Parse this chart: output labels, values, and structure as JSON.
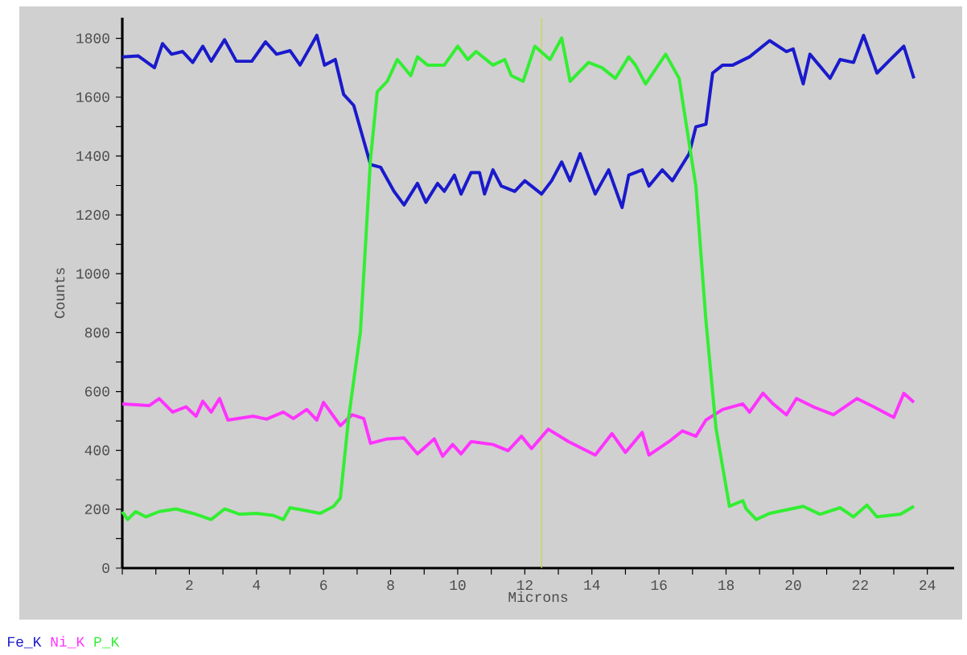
{
  "chart_data": {
    "type": "line",
    "xlabel": "Microns",
    "ylabel": "Counts",
    "xlim": [
      0,
      24.8
    ],
    "ylim": [
      0,
      1870
    ],
    "xticks": [
      {
        "value": 0,
        "label": null
      },
      {
        "value": 1,
        "label": null
      },
      2,
      {
        "value": 3,
        "label": null
      },
      4,
      {
        "value": 5,
        "label": null
      },
      6,
      {
        "value": 7,
        "label": null
      },
      8,
      {
        "value": 9,
        "label": null
      },
      10,
      {
        "value": 11,
        "label": null
      },
      12,
      {
        "value": 13,
        "label": null
      },
      14,
      {
        "value": 15,
        "label": null
      },
      16,
      {
        "value": 17,
        "label": null
      },
      18,
      {
        "value": 19,
        "label": null
      },
      20,
      {
        "value": 21,
        "label": null
      },
      22,
      {
        "value": 23,
        "label": null
      },
      24
    ],
    "yticks": [
      0,
      {
        "value": 100,
        "label": null
      },
      200,
      {
        "value": 300,
        "label": null
      },
      400,
      {
        "value": 500,
        "label": null
      },
      600,
      {
        "value": 700,
        "label": null
      },
      800,
      {
        "value": 900,
        "label": null
      },
      1000,
      {
        "value": 1100,
        "label": null
      },
      1200,
      {
        "value": 1300,
        "label": null
      },
      1400,
      {
        "value": 1500,
        "label": null
      },
      1600,
      {
        "value": 1700,
        "label": null
      },
      1800
    ],
    "legend": "bottom left",
    "ref_lines": [
      {
        "axis": "x",
        "value": 12.5,
        "color": "#c8d84a"
      }
    ],
    "series": [
      {
        "name": "Fe_K",
        "color": "#1a1acc",
        "x": [
          0,
          0.48,
          0.96,
          1.2,
          1.47,
          1.8,
          2.1,
          2.4,
          2.65,
          3.05,
          3.4,
          3.86,
          4.27,
          4.6,
          5.0,
          5.3,
          5.8,
          6.03,
          6.35,
          6.6,
          6.9,
          7.4,
          7.7,
          8.1,
          8.4,
          8.8,
          9.05,
          9.4,
          9.6,
          9.9,
          10.1,
          10.4,
          10.65,
          10.8,
          11.05,
          11.3,
          11.7,
          12.0,
          12.5,
          12.8,
          13.1,
          13.35,
          13.65,
          14.1,
          14.5,
          14.9,
          15.1,
          15.5,
          15.7,
          16.1,
          16.4,
          16.9,
          17.1,
          17.4,
          17.6,
          17.9,
          18.2,
          18.7,
          19.3,
          19.8,
          20.0,
          20.3,
          20.5,
          21.1,
          21.4,
          21.8,
          22.1,
          22.5,
          22.9,
          23.3,
          23.6
        ],
        "values": [
          1737,
          1740,
          1700,
          1782,
          1746,
          1755,
          1718,
          1773,
          1722,
          1795,
          1722,
          1722,
          1788,
          1746,
          1758,
          1709,
          1810,
          1709,
          1728,
          1609,
          1572,
          1371,
          1362,
          1280,
          1234,
          1307,
          1243,
          1307,
          1280,
          1335,
          1271,
          1344,
          1344,
          1271,
          1353,
          1298,
          1280,
          1316,
          1271,
          1316,
          1380,
          1316,
          1408,
          1271,
          1353,
          1225,
          1335,
          1353,
          1298,
          1353,
          1316,
          1408,
          1499,
          1508,
          1682,
          1709,
          1709,
          1737,
          1792,
          1755,
          1764,
          1645,
          1746,
          1664,
          1728,
          1718,
          1810,
          1682,
          1728,
          1773,
          1664
        ]
      },
      {
        "name": "Ni_K",
        "color": "#ff33ff",
        "x": [
          0,
          0.8,
          1.1,
          1.5,
          1.9,
          2.2,
          2.4,
          2.65,
          2.9,
          3.15,
          3.9,
          4.3,
          4.8,
          5.1,
          5.5,
          5.8,
          6.0,
          6.5,
          6.85,
          7.2,
          7.4,
          7.9,
          8.4,
          8.8,
          9.3,
          9.55,
          9.85,
          10.1,
          10.4,
          11.05,
          11.5,
          11.9,
          12.2,
          12.7,
          13.3,
          14.1,
          14.6,
          15.0,
          15.5,
          15.7,
          16.3,
          16.7,
          17.1,
          17.4,
          17.9,
          18.5,
          18.7,
          19.1,
          19.4,
          19.8,
          20.1,
          20.6,
          21.2,
          21.9,
          22.4,
          23.0,
          23.3,
          23.6
        ],
        "values": [
          558,
          552,
          576,
          530,
          548,
          516,
          567,
          530,
          576,
          503,
          516,
          506,
          530,
          508,
          539,
          503,
          563,
          484,
          521,
          508,
          424,
          439,
          442,
          388,
          439,
          380,
          420,
          388,
          430,
          420,
          399,
          448,
          406,
          472,
          430,
          384,
          457,
          393,
          461,
          384,
          430,
          466,
          448,
          503,
          539,
          558,
          530,
          594,
          558,
          521,
          576,
          548,
          521,
          576,
          548,
          512,
          594,
          563
        ]
      },
      {
        "name": "P_K",
        "color": "#33ee33",
        "x": [
          0,
          0.16,
          0.4,
          0.7,
          1.1,
          1.6,
          2.1,
          2.65,
          3.05,
          3.5,
          4.0,
          4.5,
          4.8,
          5.0,
          5.4,
          5.9,
          6.3,
          6.5,
          6.75,
          7.1,
          7.4,
          7.6,
          7.9,
          8.2,
          8.6,
          8.8,
          9.1,
          9.6,
          10.0,
          10.3,
          10.55,
          11.05,
          11.4,
          11.6,
          11.95,
          12.3,
          12.75,
          13.1,
          13.35,
          13.9,
          14.3,
          14.7,
          15.1,
          15.3,
          15.6,
          16.2,
          16.6,
          16.8,
          17.1,
          17.4,
          17.7,
          18.1,
          18.5,
          18.6,
          18.9,
          19.3,
          20.3,
          20.8,
          21.4,
          21.8,
          22.2,
          22.5,
          23.2,
          23.6
        ],
        "values": [
          192,
          165,
          192,
          174,
          192,
          201,
          186,
          165,
          201,
          183,
          186,
          179,
          165,
          205,
          197,
          186,
          210,
          238,
          512,
          804,
          1389,
          1618,
          1654,
          1728,
          1673,
          1737,
          1709,
          1709,
          1773,
          1728,
          1755,
          1709,
          1728,
          1673,
          1654,
          1773,
          1728,
          1801,
          1654,
          1718,
          1700,
          1664,
          1737,
          1709,
          1645,
          1746,
          1664,
          1517,
          1298,
          841,
          475,
          210,
          229,
          201,
          165,
          186,
          210,
          183,
          205,
          174,
          214,
          174,
          183,
          210
        ]
      }
    ]
  }
}
